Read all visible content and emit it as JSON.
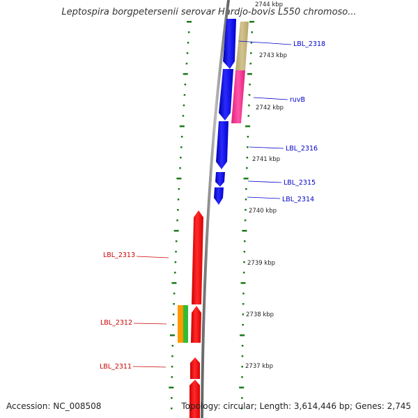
{
  "title": "Leptospira borgpetersenii serovar Hardjo-bovis L550 chromoso...",
  "accession": "Accession: NC_008508",
  "topology": "Topology: circular; Length: 3,614,446 bp; Genes: 2,745",
  "colors": {
    "forward_label": "#0000cc",
    "reverse_label": "#cc0000",
    "forward_gene": "#0000ff",
    "reverse_gene": "#ff0000",
    "tick": "#1a7a1a",
    "backbone": "#888888",
    "extra_tan": "#c2b27a",
    "extra_pink": "#ff3399",
    "extra_orange": "#ff9900",
    "extra_green": "#33bb33"
  },
  "kbp_ticks": [
    "2744 kbp",
    "2743 kbp",
    "2742 kbp",
    "2741 kbp",
    "2740 kbp",
    "2739 kbp",
    "2738 kbp",
    "2737 kbp"
  ],
  "genes": [
    {
      "name": "LBL_2318",
      "strand": "forward"
    },
    {
      "name": "ruvB",
      "strand": "forward"
    },
    {
      "name": "LBL_2316",
      "strand": "forward"
    },
    {
      "name": "LBL_2315",
      "strand": "forward"
    },
    {
      "name": "LBL_2314",
      "strand": "forward"
    },
    {
      "name": "LBL_2313",
      "strand": "reverse"
    },
    {
      "name": "LBL_2312",
      "strand": "reverse"
    },
    {
      "name": "LBL_2311",
      "strand": "reverse"
    }
  ]
}
